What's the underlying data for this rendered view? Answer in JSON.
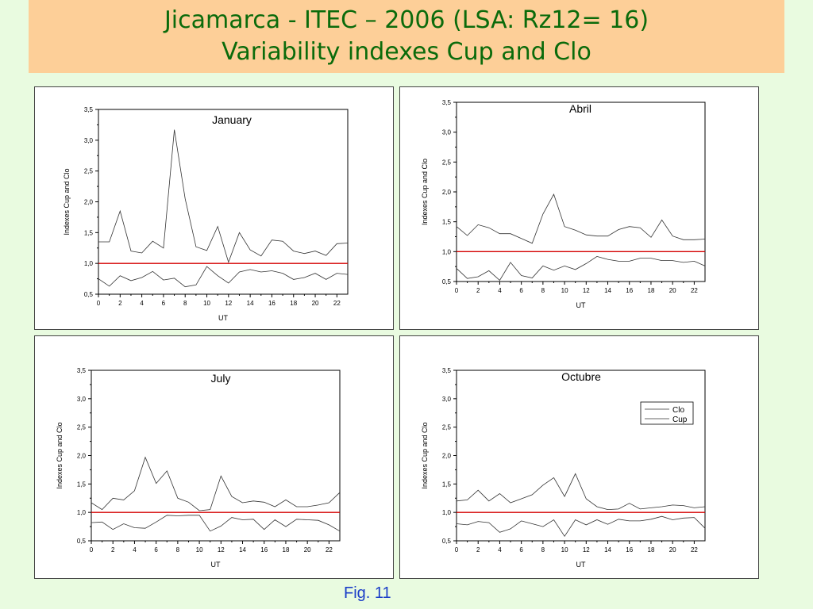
{
  "header": {
    "title_line1": "Jicamarca -  ITEC – 2006 (LSA: Rz12= 16)",
    "title_line2": "Variability indexes Cup and Clo"
  },
  "caption": "Fig. 11",
  "colors": {
    "banner": "#fdcf98",
    "background": "#e9fbe0",
    "title": "#0b6b0b",
    "reference_line": "#d40000",
    "series": "#333333",
    "caption": "#1b3ec8"
  },
  "chart_data": [
    {
      "type": "line",
      "title": "January",
      "xlabel": "UT",
      "ylabel": "Indexes Cup and Clo",
      "xlim": [
        0,
        23
      ],
      "ylim": [
        0.5,
        3.5
      ],
      "xticks": [
        "0",
        "2",
        "4",
        "6",
        "8",
        "10",
        "12",
        "14",
        "16",
        "18",
        "20",
        "22"
      ],
      "yticks": [
        "0,5",
        "1,0",
        "1,5",
        "2,0",
        "2,5",
        "3,0",
        "3,5"
      ],
      "reference_line": 1.0,
      "x": [
        0,
        1,
        2,
        3,
        4,
        5,
        6,
        7,
        8,
        9,
        10,
        11,
        12,
        13,
        14,
        15,
        16,
        17,
        18,
        19,
        20,
        21,
        22,
        23
      ],
      "series": [
        {
          "values": [
            1.35,
            1.35,
            1.85,
            1.2,
            1.17,
            1.36,
            1.25,
            3.17,
            2.05,
            1.27,
            1.21,
            1.6,
            1.02,
            1.5,
            1.22,
            1.12,
            1.38,
            1.36,
            1.2,
            1.16,
            1.2,
            1.13,
            1.32,
            1.33
          ]
        },
        {
          "values": [
            0.75,
            0.63,
            0.8,
            0.72,
            0.77,
            0.87,
            0.73,
            0.76,
            0.62,
            0.65,
            0.95,
            0.8,
            0.68,
            0.86,
            0.9,
            0.86,
            0.88,
            0.84,
            0.74,
            0.77,
            0.84,
            0.74,
            0.84,
            0.82
          ]
        }
      ]
    },
    {
      "type": "line",
      "title": "Abril",
      "xlabel": "UT",
      "ylabel": "Indexes Cup and Clo",
      "xlim": [
        0,
        23
      ],
      "ylim": [
        0.5,
        3.5
      ],
      "xticks": [
        "0",
        "2",
        "4",
        "6",
        "8",
        "10",
        "12",
        "14",
        "16",
        "18",
        "20",
        "22"
      ],
      "yticks": [
        "0,5",
        "1,0",
        "1,5",
        "2,0",
        "2,5",
        "3,0",
        "3,5"
      ],
      "reference_line": 1.0,
      "x": [
        0,
        1,
        2,
        3,
        4,
        5,
        6,
        7,
        8,
        9,
        10,
        11,
        12,
        13,
        14,
        15,
        16,
        17,
        18,
        19,
        20,
        21,
        22,
        23
      ],
      "series": [
        {
          "values": [
            1.42,
            1.27,
            1.45,
            1.4,
            1.3,
            1.3,
            1.22,
            1.14,
            1.63,
            1.96,
            1.42,
            1.36,
            1.28,
            1.26,
            1.26,
            1.37,
            1.42,
            1.4,
            1.24,
            1.53,
            1.26,
            1.2,
            1.2,
            1.21
          ]
        },
        {
          "values": [
            0.72,
            0.55,
            0.58,
            0.68,
            0.52,
            0.82,
            0.6,
            0.56,
            0.76,
            0.69,
            0.76,
            0.7,
            0.8,
            0.92,
            0.87,
            0.84,
            0.84,
            0.89,
            0.89,
            0.85,
            0.85,
            0.82,
            0.84,
            0.76
          ]
        }
      ]
    },
    {
      "type": "line",
      "title": "July",
      "xlabel": "UT",
      "ylabel": "Indexes Cup and Clo",
      "xlim": [
        0,
        23
      ],
      "ylim": [
        0.5,
        3.5
      ],
      "xticks": [
        "0",
        "2",
        "4",
        "6",
        "8",
        "10",
        "12",
        "14",
        "16",
        "18",
        "20",
        "22"
      ],
      "yticks": [
        "0,5",
        "1,0",
        "1,5",
        "2,0",
        "2,5",
        "3,0",
        "3,5"
      ],
      "reference_line": 1.0,
      "x": [
        0,
        1,
        2,
        3,
        4,
        5,
        6,
        7,
        8,
        9,
        10,
        11,
        12,
        13,
        14,
        15,
        16,
        17,
        18,
        19,
        20,
        21,
        22,
        23
      ],
      "series": [
        {
          "values": [
            1.17,
            1.05,
            1.25,
            1.22,
            1.38,
            1.97,
            1.51,
            1.73,
            1.25,
            1.18,
            1.03,
            1.05,
            1.64,
            1.28,
            1.17,
            1.2,
            1.18,
            1.1,
            1.22,
            1.1,
            1.1,
            1.13,
            1.17,
            1.35
          ]
        },
        {
          "values": [
            0.82,
            0.83,
            0.7,
            0.8,
            0.73,
            0.72,
            0.83,
            0.95,
            0.94,
            0.95,
            0.95,
            0.67,
            0.76,
            0.91,
            0.87,
            0.88,
            0.7,
            0.87,
            0.75,
            0.88,
            0.87,
            0.86,
            0.78,
            0.67
          ]
        }
      ]
    },
    {
      "type": "line",
      "title": "Octubre",
      "xlabel": "UT",
      "ylabel": "Indexes Cup and Clo",
      "xlim": [
        0,
        23
      ],
      "ylim": [
        0.5,
        3.5
      ],
      "xticks": [
        "0",
        "2",
        "4",
        "6",
        "8",
        "10",
        "12",
        "14",
        "16",
        "18",
        "20",
        "22"
      ],
      "yticks": [
        "0,5",
        "1,0",
        "1,5",
        "2,0",
        "2,5",
        "3,0",
        "3,5"
      ],
      "reference_line": 1.0,
      "legend": {
        "entries": [
          "Clo",
          "Cup"
        ],
        "placement": "top-right"
      },
      "x": [
        0,
        1,
        2,
        3,
        4,
        5,
        6,
        7,
        8,
        9,
        10,
        11,
        12,
        13,
        14,
        15,
        16,
        17,
        18,
        19,
        20,
        21,
        22,
        23
      ],
      "series": [
        {
          "values": [
            1.2,
            1.22,
            1.39,
            1.2,
            1.33,
            1.17,
            1.24,
            1.31,
            1.48,
            1.61,
            1.28,
            1.68,
            1.24,
            1.1,
            1.05,
            1.06,
            1.16,
            1.06,
            1.08,
            1.1,
            1.13,
            1.12,
            1.08,
            1.1
          ]
        },
        {
          "values": [
            0.8,
            0.78,
            0.84,
            0.82,
            0.65,
            0.71,
            0.85,
            0.8,
            0.75,
            0.87,
            0.58,
            0.87,
            0.78,
            0.87,
            0.79,
            0.88,
            0.85,
            0.85,
            0.88,
            0.93,
            0.87,
            0.9,
            0.91,
            0.72
          ]
        }
      ]
    }
  ]
}
